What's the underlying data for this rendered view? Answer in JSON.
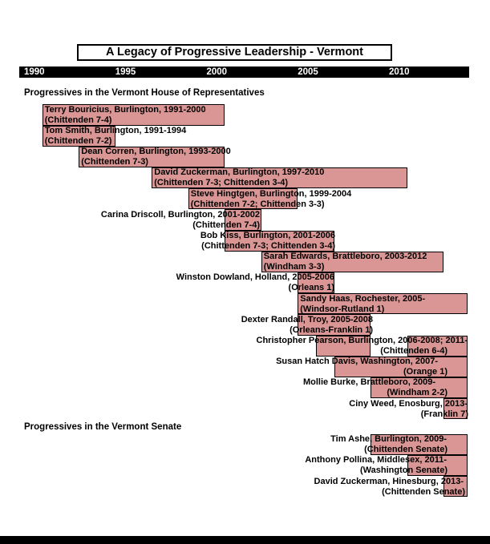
{
  "chart_data": {
    "type": "bar",
    "variant": "gantt-timeline",
    "title": "A Legacy of Progressive Leadership - Vermont",
    "axis": {
      "tick_years": [
        1990,
        1995,
        2000,
        2005,
        2010
      ],
      "tick_labels": [
        "1990",
        "1995",
        "2000",
        "2005",
        "2010"
      ],
      "range": [
        1989.7,
        2014.3
      ],
      "grid": false,
      "legend": "none"
    },
    "colors": {
      "bar_fill": "#D99694",
      "bar_border": "#000000",
      "axis_bg": "#000000",
      "axis_text": "#FFFFFF",
      "label_text": "#000000"
    },
    "sections": [
      {
        "label": "Progressives in the Vermont House of Representatives",
        "entries": [
          {
            "line1": "Terry Bouricius, Burlington, 1991-2000",
            "line2": "(Chittenden 7-4)",
            "bars": [
              [
                1991,
                2001
              ]
            ],
            "ongoing": false,
            "label_align": "left"
          },
          {
            "line1": "Tom Smith, Burlington, 1991-1994",
            "line2": "(Chittenden 7-2)",
            "bars": [
              [
                1991,
                1995
              ]
            ],
            "ongoing": false,
            "label_align": "left"
          },
          {
            "line1": "Dean Corren, Burlington, 1993-2000",
            "line2": "(Chittenden 7-3)",
            "bars": [
              [
                1993,
                2001
              ]
            ],
            "ongoing": false,
            "label_align": "left"
          },
          {
            "line1": "David Zuckerman, Burlington, 1997-2010",
            "line2": "(Chittenden 7-3; Chittenden 3-4)",
            "bars": [
              [
                1997,
                2011
              ]
            ],
            "ongoing": false,
            "label_align": "left"
          },
          {
            "line1": "Steve Hingtgen, Burlington, 1999-2004",
            "line2": "(Chittenden 7-2; Chittenden 3-3)",
            "bars": [
              [
                1999,
                2005
              ]
            ],
            "ongoing": false,
            "label_align": "left"
          },
          {
            "line1": "Carina Driscoll, Burlington, 2001-2002",
            "line2": "(Chittenden 7-4)",
            "bars": [
              [
                2001,
                2003
              ]
            ],
            "ongoing": false,
            "label_align": "right",
            "anchor1": 324,
            "anchor2": 324
          },
          {
            "line1": "Bob Kiss, Burlington, 2001-2006",
            "line2": "(Chittenden 7-3; Chittenden 3-4)",
            "bars": [
              [
                2001,
                2007
              ]
            ],
            "ongoing": false,
            "label_align": "right",
            "anchor1": 418,
            "anchor2": 418
          },
          {
            "line1": "Sarah Edwards, Brattleboro, 2003-2012",
            "line2": "(Windham 3-3)",
            "bars": [
              [
                2003,
                2013
              ]
            ],
            "ongoing": false,
            "label_align": "left"
          },
          {
            "line1": "Winston Dowland, Holland, 2005-2006",
            "line2": "(Orleans 1)",
            "bars": [
              [
                2005,
                2007
              ]
            ],
            "ongoing": false,
            "label_align": "right",
            "anchor1": 417,
            "anchor2": 417
          },
          {
            "line1": "Sandy Haas, Rochester, 2005-",
            "line2": "(Windsor-Rutland 1)",
            "bars": [
              [
                2005,
                2014.3
              ]
            ],
            "ongoing": true,
            "label_align": "left"
          },
          {
            "line1": "Dexter Randall, Troy, 2005-2008",
            "line2": "(Orleans-Franklin 1)",
            "bars": [
              [
                2005,
                2009
              ]
            ],
            "ongoing": false,
            "label_align": "right",
            "anchor1": 465,
            "anchor2": 465
          },
          {
            "line1": "Christopher Pearson, Burlington, 2006-2008; 2011-",
            "line2": "(Chittenden 6-4)",
            "bars": [
              [
                2006,
                2009
              ],
              [
                2011,
                2014.3
              ]
            ],
            "ongoing": true,
            "label_align": "right",
            "anchor1": 583,
            "anchor2": 558
          },
          {
            "line1": "Susan Hatch Davis, Washington, 2007-",
            "line2": "(Orange 1)",
            "bars": [
              [
                2007,
                2014.3
              ]
            ],
            "ongoing": true,
            "label_align": "right",
            "anchor1": 546,
            "anchor2": 558
          },
          {
            "line1": "Mollie Burke, Brattleboro, 2009-",
            "line2": "(Windham 2-2)",
            "bars": [
              [
                2009,
                2014.3
              ]
            ],
            "ongoing": true,
            "label_align": "right",
            "anchor1": 543,
            "anchor2": 558
          },
          {
            "line1": "Ciny Weed, Enosburg, 2013-",
            "line2": "(Franklin 7)",
            "bars": [
              [
                2013,
                2014.3
              ]
            ],
            "ongoing": true,
            "label_align": "right",
            "anchor1": 583,
            "anchor2": 584
          }
        ]
      },
      {
        "label": "Progressives in the Vermont Senate",
        "entries": [
          {
            "line1": "Tim Ashe, Burlington, 2009-",
            "line2": "(Chittenden Senate)",
            "bars": [
              [
                2009,
                2014.3
              ]
            ],
            "ongoing": true,
            "label_align": "right",
            "anchor1": 557,
            "anchor2": 558
          },
          {
            "line1": "Anthony Pollina, Middlesex, 2011-",
            "line2": "(Washington Senate)",
            "bars": [
              [
                2011,
                2014.3
              ]
            ],
            "ongoing": true,
            "label_align": "right",
            "anchor1": 557,
            "anchor2": 558
          },
          {
            "line1": "David Zuckerman, Hinesburg, 2013-",
            "line2": "(Chittenden Senate)",
            "bars": [
              [
                2013,
                2014.3
              ]
            ],
            "ongoing": true,
            "label_align": "right",
            "anchor1": 578,
            "anchor2": 580
          }
        ]
      }
    ]
  }
}
